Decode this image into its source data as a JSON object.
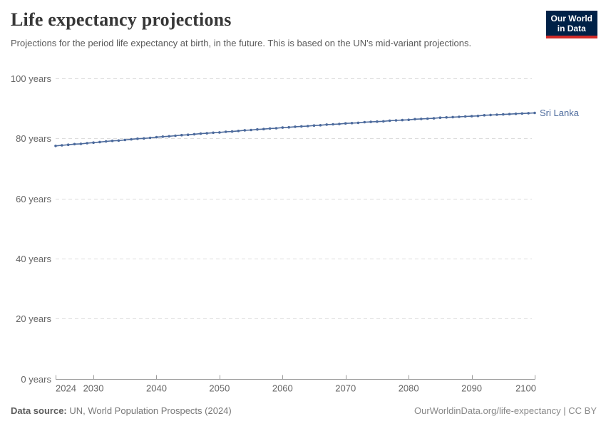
{
  "header": {
    "title": "Life expectancy projections",
    "subtitle": "Projections for the period life expectancy at birth, in the future. This is based on the UN's mid-variant projections.",
    "logo": {
      "line1": "Our World",
      "line2": "in Data",
      "bg_color": "#002147",
      "accent_color": "#D12B28"
    }
  },
  "chart_data": {
    "type": "line",
    "title": "Life expectancy projections",
    "xlabel": "",
    "ylabel": "",
    "xlim": [
      2024,
      2100
    ],
    "ylim": [
      0,
      100
    ],
    "grid": "horizontal-dashed",
    "legend_position": "end-of-line",
    "xticks": [
      2024,
      2030,
      2040,
      2050,
      2060,
      2070,
      2080,
      2090,
      2100
    ],
    "yticks": [
      0,
      20,
      40,
      60,
      80,
      100
    ],
    "ytick_labels": [
      "0 years",
      "20 years",
      "40 years",
      "60 years",
      "80 years",
      "100 years"
    ],
    "x": [
      2024,
      2025,
      2026,
      2027,
      2028,
      2029,
      2030,
      2031,
      2032,
      2033,
      2034,
      2035,
      2036,
      2037,
      2038,
      2039,
      2040,
      2041,
      2042,
      2043,
      2044,
      2045,
      2046,
      2047,
      2048,
      2049,
      2050,
      2051,
      2052,
      2053,
      2054,
      2055,
      2056,
      2057,
      2058,
      2059,
      2060,
      2061,
      2062,
      2063,
      2064,
      2065,
      2066,
      2067,
      2068,
      2069,
      2070,
      2071,
      2072,
      2073,
      2074,
      2075,
      2076,
      2077,
      2078,
      2079,
      2080,
      2081,
      2082,
      2083,
      2084,
      2085,
      2086,
      2087,
      2088,
      2089,
      2090,
      2091,
      2092,
      2093,
      2094,
      2095,
      2096,
      2097,
      2098,
      2099,
      2100
    ],
    "series": [
      {
        "name": "Sri Lanka",
        "color": "#4C6A9C",
        "values": [
          77.5,
          77.7,
          77.9,
          78.1,
          78.2,
          78.4,
          78.6,
          78.8,
          79.0,
          79.2,
          79.3,
          79.5,
          79.7,
          79.9,
          80.0,
          80.2,
          80.4,
          80.6,
          80.7,
          80.9,
          81.1,
          81.2,
          81.4,
          81.6,
          81.7,
          81.9,
          82.0,
          82.2,
          82.3,
          82.5,
          82.7,
          82.8,
          83.0,
          83.1,
          83.3,
          83.4,
          83.6,
          83.7,
          83.9,
          84.0,
          84.1,
          84.3,
          84.4,
          84.6,
          84.7,
          84.8,
          85.0,
          85.1,
          85.2,
          85.4,
          85.5,
          85.6,
          85.7,
          85.9,
          86.0,
          86.1,
          86.2,
          86.4,
          86.5,
          86.6,
          86.7,
          86.9,
          87.0,
          87.1,
          87.2,
          87.3,
          87.4,
          87.5,
          87.7,
          87.8,
          87.9,
          88.0,
          88.1,
          88.2,
          88.3,
          88.4,
          88.5
        ]
      }
    ],
    "axis_color": "#9b9b9b",
    "gridline_color": "#dcdcdc",
    "tick_label_color": "#666666"
  },
  "footer": {
    "datasource_label": "Data source:",
    "datasource_value": " UN, World Population Prospects (2024)",
    "credit": "OurWorldinData.org/life-expectancy | CC BY"
  }
}
